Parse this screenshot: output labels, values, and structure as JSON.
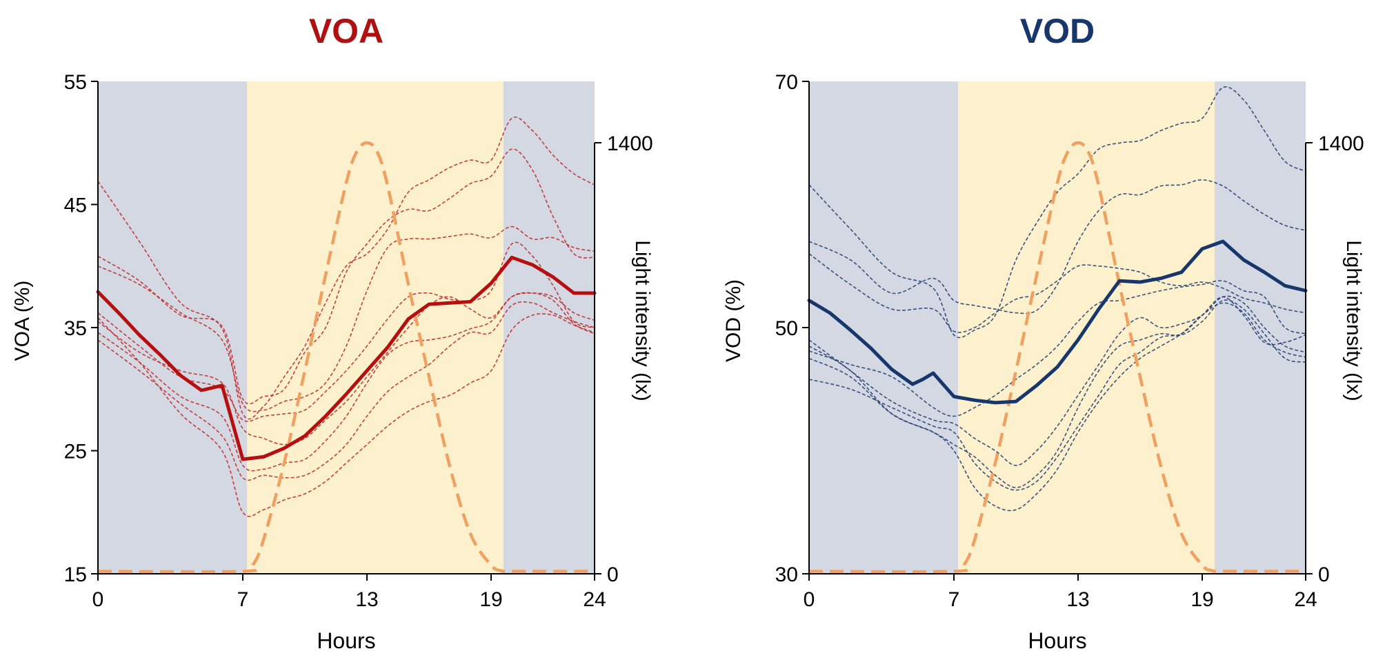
{
  "chart_data": [
    {
      "type": "line",
      "title": "VOA",
      "title_color": "#b01010",
      "xlabel": "Hours",
      "ylabel": "VOA (%)",
      "y2label": "Light intensity (lx)",
      "xlim": [
        0,
        24
      ],
      "ylim": [
        15,
        55
      ],
      "y2lim": [
        0,
        1400
      ],
      "x_ticks": [
        0,
        7,
        13,
        19,
        24
      ],
      "x_tick_labels": [
        "0",
        "7",
        "13",
        "19",
        "24"
      ],
      "y_ticks": [
        15,
        25,
        35,
        45,
        55
      ],
      "y_tick_labels": [
        "15",
        "25",
        "35",
        "45",
        "55"
      ],
      "y2_ticks": [
        0,
        1400
      ],
      "y2_tick_labels": [
        "0",
        "1400"
      ],
      "shaded_regions": [
        {
          "name": "dark",
          "x0": 0,
          "x1": 7.2,
          "color": "#d3d8e2"
        },
        {
          "name": "light",
          "x0": 7.2,
          "x1": 19.6,
          "color": "#fdf0cc"
        },
        {
          "name": "dark",
          "x0": 19.6,
          "x1": 24,
          "color": "#d3d8e2"
        }
      ],
      "individual_color": "#c22a2a",
      "mean_color": "#b50f0f",
      "light_color": "#f0a060",
      "mean_series": {
        "name": "mean",
        "x": [
          0,
          1,
          2,
          3,
          4,
          5,
          6,
          7,
          8,
          9,
          10,
          11,
          12,
          13,
          14,
          15,
          16,
          17,
          18,
          19,
          20,
          21,
          22,
          23,
          24
        ],
        "y": [
          37.9,
          36.2,
          34.4,
          32.8,
          31.1,
          29.9,
          30.3,
          24.3,
          24.5,
          25.2,
          26.2,
          27.8,
          29.6,
          31.5,
          33.4,
          35.7,
          36.9,
          37.0,
          37.1,
          38.6,
          40.7,
          40.1,
          39.1,
          37.8,
          37.8
        ]
      },
      "individual_series": [
        {
          "name": "subject-1",
          "x": [
            0,
            2,
            4,
            6,
            7,
            8,
            9,
            10,
            11,
            12,
            13,
            14,
            15,
            16,
            17,
            18,
            19,
            20,
            21,
            22,
            23,
            24
          ],
          "y": [
            46.9,
            42.0,
            37.0,
            34.9,
            28.0,
            28.6,
            31.0,
            33.5,
            37.0,
            40.0,
            41.0,
            43.0,
            46.0,
            47.0,
            48.0,
            48.6,
            48.6,
            52.0,
            51.0,
            49.0,
            47.5,
            46.6
          ]
        },
        {
          "name": "subject-2",
          "x": [
            0,
            2,
            4,
            6,
            7,
            8,
            9,
            10,
            11,
            12,
            13,
            14,
            15,
            16,
            17,
            18,
            19,
            20,
            21,
            22,
            23,
            24
          ],
          "y": [
            40.8,
            38.8,
            36.0,
            35.1,
            29.2,
            29.4,
            30.0,
            33.0,
            35.0,
            39.5,
            41.8,
            43.7,
            44.6,
            44.5,
            45.5,
            46.7,
            47.3,
            49.5,
            47.8,
            44.0,
            41.0,
            40.7
          ]
        },
        {
          "name": "subject-3",
          "x": [
            0,
            2,
            4,
            6,
            7,
            8,
            9,
            10,
            11,
            12,
            13,
            14,
            15,
            16,
            17,
            18,
            19,
            20,
            21,
            22,
            23,
            24
          ],
          "y": [
            40.0,
            38.5,
            36.2,
            34.0,
            28.8,
            28.3,
            29.0,
            29.4,
            30.5,
            33.5,
            38.0,
            41.5,
            42.2,
            42.2,
            42.4,
            42.6,
            42.3,
            43.2,
            42.2,
            42.3,
            41.5,
            41.2
          ]
        },
        {
          "name": "subject-4",
          "x": [
            0,
            2,
            4,
            6,
            7,
            8,
            9,
            10,
            11,
            12,
            13,
            14,
            15,
            16,
            17,
            18,
            19,
            20,
            21,
            22,
            23,
            24
          ],
          "y": [
            36.2,
            33.5,
            31.0,
            30.0,
            27.5,
            27.8,
            28.0,
            28.3,
            29.8,
            31.5,
            33.5,
            35.7,
            37.5,
            37.8,
            37.3,
            37.2,
            38.0,
            41.8,
            40.8,
            38.4,
            35.5,
            35.0
          ]
        },
        {
          "name": "subject-5",
          "x": [
            0,
            2,
            4,
            6,
            7,
            8,
            9,
            10,
            11,
            12,
            13,
            14,
            15,
            16,
            17,
            18,
            19,
            20,
            21,
            22,
            23,
            24
          ],
          "y": [
            35.5,
            33.0,
            31.5,
            30.5,
            26.8,
            26.0,
            25.5,
            26.0,
            27.5,
            29.0,
            31.0,
            33.0,
            35.0,
            36.8,
            37.5,
            36.5,
            35.8,
            37.5,
            37.8,
            37.5,
            36.2,
            35.6
          ]
        },
        {
          "name": "subject-6",
          "x": [
            0,
            2,
            4,
            6,
            7,
            8,
            9,
            10,
            11,
            12,
            13,
            14,
            15,
            16,
            17,
            18,
            19,
            20,
            21,
            22,
            23,
            24
          ],
          "y": [
            34.6,
            32.2,
            29.4,
            27.8,
            23.8,
            23.5,
            24.0,
            24.3,
            25.8,
            27.8,
            30.5,
            32.8,
            33.8,
            34.0,
            34.3,
            34.9,
            35.5,
            37.5,
            37.8,
            37.2,
            35.3,
            34.5
          ]
        },
        {
          "name": "subject-7",
          "x": [
            0,
            2,
            4,
            6,
            7,
            8,
            9,
            10,
            11,
            12,
            13,
            14,
            15,
            16,
            17,
            18,
            19,
            20,
            21,
            22,
            23,
            24
          ],
          "y": [
            34.0,
            31.5,
            28.8,
            26.2,
            22.8,
            23.0,
            22.8,
            23.0,
            24.0,
            25.5,
            27.8,
            29.8,
            31.0,
            32.0,
            33.5,
            34.6,
            34.6,
            36.8,
            37.0,
            36.2,
            35.5,
            35.0
          ]
        },
        {
          "name": "subject-8",
          "x": [
            0,
            2,
            4,
            6,
            7,
            8,
            9,
            10,
            11,
            12,
            13,
            14,
            15,
            16,
            17,
            18,
            19,
            20,
            21,
            22,
            23,
            24
          ],
          "y": [
            35.8,
            32.2,
            28.0,
            25.0,
            20.0,
            20.2,
            21.0,
            21.5,
            22.5,
            24.0,
            25.5,
            27.0,
            28.2,
            29.0,
            29.5,
            30.5,
            31.5,
            34.8,
            36.0,
            36.0,
            35.2,
            34.6
          ]
        }
      ],
      "light_series": {
        "name": "light intensity",
        "x": [
          0,
          7,
          7.5,
          8,
          9,
          10,
          11,
          12,
          12.5,
          13,
          13.5,
          14,
          15,
          16,
          17,
          18,
          19,
          19.5,
          20,
          24
        ],
        "y": [
          8,
          8,
          30,
          110,
          360,
          660,
          970,
          1270,
          1370,
          1400,
          1370,
          1260,
          940,
          640,
          350,
          130,
          28,
          10,
          8,
          8
        ]
      }
    },
    {
      "type": "line",
      "title": "VOD",
      "title_color": "#17366b",
      "xlabel": "Hours",
      "ylabel": "VOD (%)",
      "y2label": "Light intensity (lx)",
      "xlim": [
        0,
        24
      ],
      "ylim": [
        30,
        70
      ],
      "y2lim": [
        0,
        1400
      ],
      "x_ticks": [
        0,
        7,
        13,
        19,
        24
      ],
      "x_tick_labels": [
        "0",
        "7",
        "13",
        "19",
        "24"
      ],
      "y_ticks": [
        30,
        50,
        70
      ],
      "y_tick_labels": [
        "30",
        "50",
        "70"
      ],
      "y2_ticks": [
        0,
        1400
      ],
      "y2_tick_labels": [
        "0",
        "1400"
      ],
      "shaded_regions": [
        {
          "name": "dark",
          "x0": 0,
          "x1": 7.2,
          "color": "#d3d8e2"
        },
        {
          "name": "light",
          "x0": 7.2,
          "x1": 19.6,
          "color": "#fdf0cc"
        },
        {
          "name": "dark",
          "x0": 19.6,
          "x1": 24,
          "color": "#d3d8e2"
        }
      ],
      "individual_color": "#243f73",
      "mean_color": "#17366b",
      "light_color": "#f0a060",
      "mean_series": {
        "name": "mean",
        "x": [
          0,
          1,
          2,
          3,
          4,
          5,
          5.5,
          6,
          7,
          8,
          9,
          10,
          11,
          12,
          13,
          14,
          15,
          16,
          17,
          18,
          19,
          20,
          21,
          22,
          23,
          24
        ],
        "y": [
          52.2,
          51.2,
          49.8,
          48.3,
          46.6,
          45.4,
          45.8,
          46.3,
          44.4,
          44.1,
          43.9,
          44.0,
          45.3,
          46.8,
          49.0,
          51.5,
          53.8,
          53.7,
          54.0,
          54.5,
          56.4,
          57.0,
          55.5,
          54.5,
          53.4,
          53.0
        ]
      },
      "individual_series": [
        {
          "name": "subject-1",
          "x": [
            0,
            2,
            4,
            6,
            7,
            8,
            9,
            10,
            11,
            12,
            13,
            14,
            15,
            16,
            17,
            18,
            19,
            20,
            21,
            22,
            23,
            24
          ],
          "y": [
            61.6,
            58.0,
            54.5,
            53.2,
            49.4,
            49.8,
            51.0,
            55.5,
            58.5,
            61.0,
            62.5,
            64.5,
            65.0,
            65.2,
            66.0,
            66.6,
            67.0,
            69.5,
            68.5,
            66.0,
            63.5,
            62.7
          ]
        },
        {
          "name": "subject-2",
          "x": [
            0,
            2,
            4,
            6,
            7,
            8,
            9,
            10,
            11,
            12,
            13,
            14,
            15,
            16,
            17,
            18,
            19,
            20,
            21,
            22,
            23,
            24
          ],
          "y": [
            57.0,
            55.5,
            52.8,
            54.0,
            52.2,
            51.8,
            51.5,
            51.2,
            51.4,
            53.5,
            57.0,
            59.5,
            60.8,
            60.8,
            61.5,
            61.6,
            62.0,
            61.5,
            60.3,
            59.2,
            58.3,
            57.9
          ]
        },
        {
          "name": "subject-3",
          "x": [
            0,
            2,
            4,
            6,
            7,
            8,
            9,
            10,
            11,
            12,
            13,
            14,
            15,
            16,
            17,
            18,
            19,
            20,
            21,
            22,
            23,
            24
          ],
          "y": [
            56.0,
            53.5,
            51.5,
            51.5,
            49.7,
            50.0,
            51.2,
            52.3,
            52.7,
            53.8,
            55.0,
            55.0,
            54.8,
            54.5,
            53.7,
            53.4,
            53.7,
            53.2,
            52.4,
            52.0,
            51.5,
            51.2
          ]
        },
        {
          "name": "subject-4",
          "x": [
            0,
            2,
            4,
            6,
            7,
            8,
            9,
            10,
            11,
            12,
            13,
            14,
            15,
            16,
            17,
            18,
            19,
            20,
            21,
            22,
            23,
            24
          ],
          "y": [
            48.1,
            47.0,
            46.0,
            43.5,
            42.8,
            43.5,
            44.5,
            45.8,
            47.0,
            48.5,
            50.5,
            52.0,
            52.2,
            52.6,
            53.0,
            53.3,
            53.5,
            53.8,
            53.0,
            52.5,
            50.0,
            49.5
          ]
        },
        {
          "name": "subject-5",
          "x": [
            0,
            2,
            4,
            6,
            7,
            8,
            9,
            10,
            11,
            12,
            13,
            14,
            15,
            16,
            17,
            18,
            19,
            20,
            21,
            22,
            23,
            24
          ],
          "y": [
            49.0,
            46.5,
            44.0,
            42.5,
            42.2,
            41.0,
            40.0,
            38.8,
            40.0,
            42.0,
            44.5,
            47.0,
            49.5,
            50.8,
            50.0,
            50.3,
            51.0,
            52.5,
            52.0,
            50.0,
            48.5,
            48.0
          ]
        },
        {
          "name": "subject-6",
          "x": [
            0,
            2,
            4,
            6,
            7,
            8,
            9,
            10,
            11,
            12,
            13,
            14,
            15,
            16,
            17,
            18,
            19,
            20,
            21,
            22,
            23,
            24
          ],
          "y": [
            45.8,
            45.0,
            43.5,
            42.0,
            41.5,
            39.0,
            37.5,
            36.8,
            37.5,
            39.5,
            42.0,
            44.5,
            47.0,
            48.0,
            49.2,
            49.5,
            51.0,
            52.5,
            51.0,
            48.8,
            48.8,
            49.4
          ]
        },
        {
          "name": "subject-7",
          "x": [
            0,
            2,
            4,
            6,
            7,
            8,
            9,
            10,
            11,
            12,
            13,
            14,
            15,
            16,
            17,
            18,
            19,
            20,
            21,
            22,
            23,
            24
          ],
          "y": [
            47.5,
            46.0,
            43.0,
            41.5,
            40.5,
            39.5,
            38.0,
            37.0,
            38.0,
            40.0,
            43.5,
            46.5,
            48.5,
            49.0,
            49.5,
            49.4,
            50.5,
            52.2,
            51.5,
            49.5,
            47.5,
            47.2
          ]
        },
        {
          "name": "subject-8",
          "x": [
            0,
            2,
            4,
            6,
            7,
            8,
            9,
            10,
            11,
            12,
            13,
            14,
            15,
            16,
            17,
            18,
            19,
            20,
            21,
            22,
            23,
            24
          ],
          "y": [
            48.5,
            46.5,
            43.0,
            41.5,
            40.0,
            37.0,
            35.5,
            35.2,
            36.5,
            38.5,
            41.5,
            44.0,
            46.0,
            47.5,
            48.5,
            49.5,
            51.0,
            52.0,
            51.2,
            49.0,
            48.0,
            47.6
          ]
        }
      ],
      "light_series": {
        "name": "light intensity",
        "x": [
          0,
          7,
          7.5,
          8,
          9,
          10,
          11,
          12,
          12.5,
          13,
          13.5,
          14,
          15,
          16,
          17,
          18,
          19,
          19.5,
          20,
          24
        ],
        "y": [
          8,
          8,
          30,
          110,
          360,
          660,
          970,
          1270,
          1370,
          1400,
          1370,
          1260,
          940,
          640,
          350,
          130,
          28,
          10,
          8,
          8
        ]
      }
    }
  ]
}
